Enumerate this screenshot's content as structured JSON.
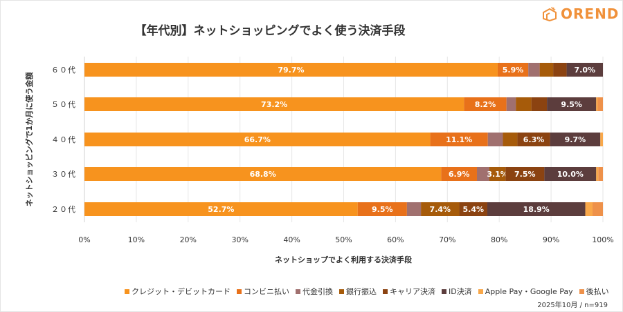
{
  "brand": {
    "name": "OREND",
    "color": "#F0913A"
  },
  "footer": "2025年10月 / n=919",
  "chart_data": {
    "type": "bar",
    "orientation": "horizontal",
    "stacked": true,
    "title": "【年代別】ネットショッピングでよく使う決済手段",
    "xlabel": "ネットショップでよく利用する決済手段",
    "ylabel": "ネットショッピングで1か月に使う金額",
    "xlim": [
      0,
      100
    ],
    "xticks": [
      "0%",
      "10%",
      "20%",
      "30%",
      "40%",
      "50%",
      "60%",
      "70%",
      "80%",
      "90%",
      "100%"
    ],
    "grid": true,
    "legend_position": "bottom",
    "categories": [
      "６０代",
      "５０代",
      "４０代",
      "３０代",
      "２０代"
    ],
    "series": [
      {
        "name": "クレジット・デビットカード",
        "color": "#F7931E",
        "values": [
          79.7,
          73.2,
          66.7,
          68.8,
          52.7
        ]
      },
      {
        "name": "コンビニ払い",
        "color": "#E8711A",
        "values": [
          5.9,
          8.2,
          11.1,
          6.9,
          9.5
        ]
      },
      {
        "name": "代金引換",
        "color": "#A0706F",
        "values": [
          2.2,
          1.8,
          2.9,
          2.4,
          2.7
        ]
      },
      {
        "name": "銀行振込",
        "color": "#A65B0A",
        "values": [
          2.6,
          3.0,
          2.8,
          3.1,
          7.4
        ]
      },
      {
        "name": "キャリア決済",
        "color": "#8B4311",
        "values": [
          2.6,
          3.0,
          6.3,
          7.5,
          5.4
        ]
      },
      {
        "name": "ID決済",
        "color": "#5C3D3D",
        "values": [
          7.0,
          9.5,
          9.7,
          10.0,
          18.9
        ]
      },
      {
        "name": "Apple Pay・Google Pay",
        "color": "#F9A84A",
        "values": [
          0.0,
          0.3,
          0.5,
          0.4,
          1.4
        ]
      },
      {
        "name": "後払い",
        "color": "#EE914A",
        "values": [
          0.0,
          1.0,
          0.0,
          0.9,
          2.0
        ]
      }
    ]
  }
}
